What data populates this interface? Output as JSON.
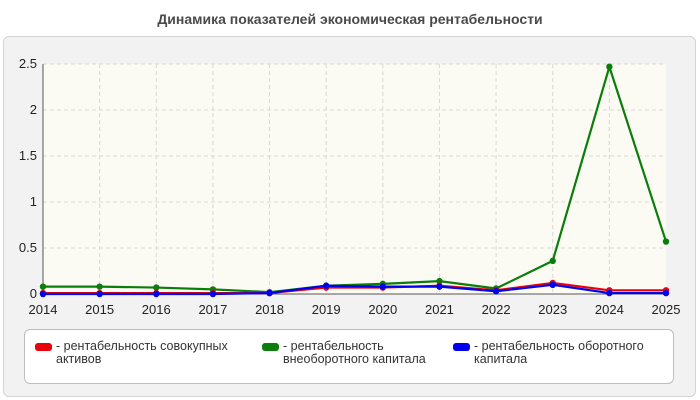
{
  "title": "Динамика показателей экономическая рентабельности",
  "chart_data": {
    "type": "line",
    "title": "Динамика показателей экономическая рентабельности",
    "categories": [
      "2014",
      "2015",
      "2016",
      "2017",
      "2018",
      "2019",
      "2020",
      "2021",
      "2022",
      "2023",
      "2024",
      "2025"
    ],
    "ylim": [
      0,
      2.5
    ],
    "yticks": [
      "0",
      "0.5",
      "1",
      "1.5",
      "2",
      "2.5"
    ],
    "grid": true,
    "legend_position": "bottom",
    "series": [
      {
        "name": "рентабельность совокупных активов",
        "color": "#e8000b",
        "values": [
          0.01,
          0.01,
          0.01,
          0.01,
          0.01,
          0.07,
          0.07,
          0.09,
          0.04,
          0.12,
          0.04,
          0.04
        ]
      },
      {
        "name": "рентабельность внеоборотного капитала",
        "color": "#0a7d0a",
        "values": [
          0.08,
          0.08,
          0.07,
          0.05,
          0.02,
          0.09,
          0.11,
          0.14,
          0.06,
          0.36,
          2.47,
          0.57
        ]
      },
      {
        "name": "рентабельность оборотного капитала",
        "color": "#0000ee",
        "values": [
          0.0,
          0.0,
          0.0,
          0.0,
          0.01,
          0.09,
          0.08,
          0.08,
          0.03,
          0.1,
          0.01,
          0.01
        ]
      }
    ]
  },
  "legend": {
    "items": [
      {
        "prefix": "- ",
        "label": "рентабельность совокупных активов"
      },
      {
        "prefix": "- ",
        "label": "рентабельность внеоборотного капитала"
      },
      {
        "prefix": "- ",
        "label": "рентабельность оборотного капитала"
      }
    ]
  }
}
